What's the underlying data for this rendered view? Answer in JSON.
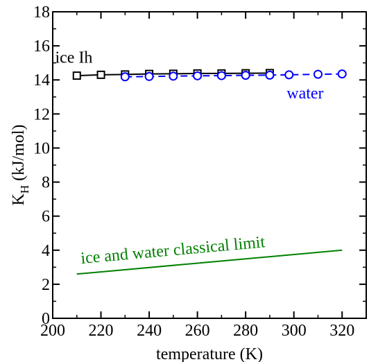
{
  "chart_data": {
    "type": "line",
    "xlabel": "temperature (K)",
    "ylabel_main": "K",
    "ylabel_sub": "H",
    "ylabel_unit": "(kJ/mol)",
    "xlim": [
      200,
      330
    ],
    "ylim": [
      0,
      18
    ],
    "x_ticks": [
      200,
      220,
      240,
      260,
      280,
      300,
      320
    ],
    "y_ticks": [
      0,
      2,
      4,
      6,
      8,
      10,
      12,
      14,
      16,
      18
    ],
    "grid": false,
    "series": [
      {
        "name": "ice Ih",
        "color": "#000000",
        "line_style": "solid",
        "marker": "square",
        "x": [
          210,
          220,
          230,
          240,
          250,
          260,
          270,
          280,
          290
        ],
        "y": [
          14.25,
          14.3,
          14.32,
          14.35,
          14.36,
          14.38,
          14.38,
          14.39,
          14.4
        ]
      },
      {
        "name": "water",
        "color": "#0000ff",
        "line_style": "dashed",
        "marker": "circle",
        "x": [
          230,
          240,
          250,
          260,
          270,
          280,
          290,
          298,
          310,
          320
        ],
        "y": [
          14.18,
          14.2,
          14.22,
          14.24,
          14.25,
          14.27,
          14.28,
          14.3,
          14.33,
          14.35
        ]
      },
      {
        "name": "ice and water classical limit",
        "color": "#008000",
        "line_style": "solid",
        "marker": "none",
        "x": [
          210,
          320
        ],
        "y": [
          2.6,
          4.0
        ]
      }
    ]
  }
}
